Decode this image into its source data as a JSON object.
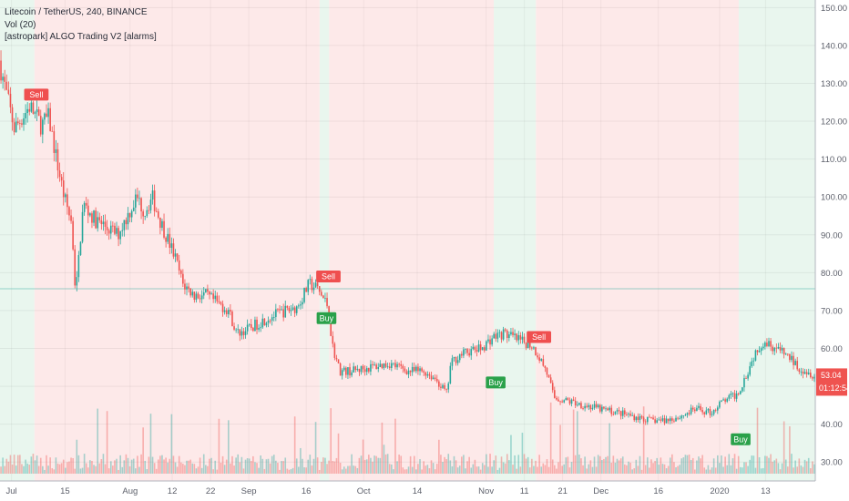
{
  "header": {
    "symbol_line": "Litecoin / TetherUS, 240, BINANCE",
    "volume_line": "Vol (20)",
    "indicator_line": "[astropark] ALGO Trading V2 [alarms]"
  },
  "colors": {
    "up": "#26a69a",
    "down": "#ef5350",
    "bullish_zone": "#e9f6ee",
    "bearish_zone": "#fde9e9",
    "buy_label": "#2aa14a",
    "sell_label": "#ef4f4f",
    "price_tag": "#ef5350"
  },
  "chart_data": {
    "type": "candlestick",
    "y_axis": {
      "min": 25,
      "max": 152,
      "ticks": [
        "150.00",
        "140.00",
        "130.00",
        "120.00",
        "110.00",
        "100.00",
        "90.00",
        "80.00",
        "70.00",
        "60.00",
        "50.00",
        "40.00",
        "30.00"
      ],
      "tick_values": [
        150,
        140,
        130,
        120,
        110,
        100,
        90,
        80,
        70,
        60,
        50,
        40,
        30
      ],
      "grid": true
    },
    "x_axis": {
      "ticks": [
        {
          "label": "Jul",
          "t": 3
        },
        {
          "label": "15",
          "t": 17
        },
        {
          "label": "Aug",
          "t": 34
        },
        {
          "label": "12",
          "t": 45
        },
        {
          "label": "22",
          "t": 55
        },
        {
          "label": "Sep",
          "t": 65
        },
        {
          "label": "16",
          "t": 80
        },
        {
          "label": "Oct",
          "t": 95
        },
        {
          "label": "14",
          "t": 109
        },
        {
          "label": "Nov",
          "t": 127
        },
        {
          "label": "11",
          "t": 137
        },
        {
          "label": "21",
          "t": 147
        },
        {
          "label": "Dec",
          "t": 157
        },
        {
          "label": "16",
          "t": 172
        },
        {
          "label": "2020",
          "t": 188
        },
        {
          "label": "13",
          "t": 200
        }
      ],
      "t_range": [
        0,
        213
      ]
    },
    "price_anchors": [
      [
        0,
        136
      ],
      [
        4,
        118
      ],
      [
        8,
        124
      ],
      [
        11,
        119
      ],
      [
        13,
        121
      ],
      [
        15,
        110
      ],
      [
        17,
        100
      ],
      [
        19,
        93
      ],
      [
        20,
        74
      ],
      [
        22,
        98
      ],
      [
        25,
        94
      ],
      [
        28,
        92
      ],
      [
        31,
        90
      ],
      [
        34,
        96
      ],
      [
        36,
        100
      ],
      [
        38,
        96
      ],
      [
        40,
        100
      ],
      [
        42,
        94
      ],
      [
        44,
        89
      ],
      [
        46,
        84
      ],
      [
        48,
        77
      ],
      [
        51,
        74
      ],
      [
        54,
        74
      ],
      [
        57,
        72
      ],
      [
        60,
        70
      ],
      [
        62,
        64
      ],
      [
        65,
        65
      ],
      [
        70,
        68
      ],
      [
        75,
        70
      ],
      [
        78,
        71
      ],
      [
        81,
        77
      ],
      [
        83,
        76
      ],
      [
        86,
        71
      ],
      [
        87,
        61
      ],
      [
        89,
        54
      ],
      [
        92,
        54
      ],
      [
        97,
        55
      ],
      [
        102,
        56
      ],
      [
        107,
        54
      ],
      [
        111,
        54
      ],
      [
        114,
        52
      ],
      [
        117,
        48
      ],
      [
        118,
        56
      ],
      [
        120,
        58
      ],
      [
        122,
        59
      ],
      [
        126,
        60
      ],
      [
        129,
        63
      ],
      [
        132,
        64
      ],
      [
        134,
        63
      ],
      [
        136,
        62
      ],
      [
        139,
        61
      ],
      [
        141,
        58
      ],
      [
        143,
        54
      ],
      [
        145,
        47
      ],
      [
        149,
        46
      ],
      [
        153,
        45
      ],
      [
        157,
        44
      ],
      [
        162,
        43
      ],
      [
        166,
        42
      ],
      [
        170,
        41
      ],
      [
        174,
        41
      ],
      [
        178,
        42
      ],
      [
        182,
        44
      ],
      [
        186,
        43
      ],
      [
        189,
        46
      ],
      [
        193,
        48
      ],
      [
        196,
        55
      ],
      [
        198,
        60
      ],
      [
        200,
        62
      ],
      [
        203,
        60
      ],
      [
        206,
        58
      ],
      [
        209,
        55
      ],
      [
        213,
        53
      ]
    ],
    "zones": [
      {
        "type": "bullish",
        "t_start": 0,
        "t_end": 9
      },
      {
        "type": "bearish",
        "t_start": 9,
        "t_end": 83.5
      },
      {
        "type": "bullish",
        "t_start": 83.5,
        "t_end": 86
      },
      {
        "type": "bearish",
        "t_start": 86,
        "t_end": 129
      },
      {
        "type": "bullish",
        "t_start": 129,
        "t_end": 140
      },
      {
        "type": "bearish",
        "t_start": 140,
        "t_end": 193
      },
      {
        "type": "bullish",
        "t_start": 193,
        "t_end": 213
      }
    ],
    "signals": [
      {
        "label": "Sell",
        "kind": "sell",
        "t": 9.5,
        "price": 127
      },
      {
        "label": "Sell",
        "kind": "sell",
        "t": 85.8,
        "price": 79
      },
      {
        "label": "Buy",
        "kind": "buy",
        "t": 85.3,
        "price": 68
      },
      {
        "label": "Buy",
        "kind": "buy",
        "t": 129.5,
        "price": 51
      },
      {
        "label": "Sell",
        "kind": "sell",
        "t": 140.8,
        "price": 63
      },
      {
        "label": "Buy",
        "kind": "buy",
        "t": 193.5,
        "price": 36
      }
    ],
    "reference_line": {
      "price": 75
    },
    "last_price": {
      "value": "53.04",
      "countdown": "01:12:54",
      "price": 53.04
    }
  }
}
